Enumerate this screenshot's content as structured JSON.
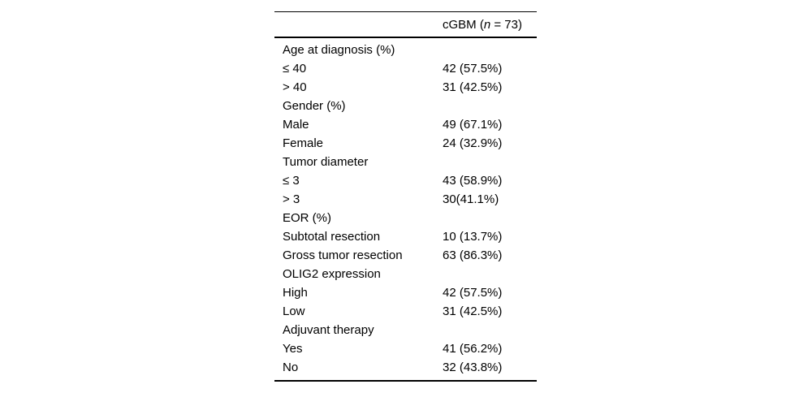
{
  "table": {
    "header": {
      "pre": "cGBM (",
      "n_italic": "n",
      "post": " = 73)"
    },
    "rows": [
      {
        "label": "Age at diagnosis (%)",
        "value": ""
      },
      {
        "label": "≤ 40",
        "value": "42 (57.5%)"
      },
      {
        "label": "> 40",
        "value": "31 (42.5%)"
      },
      {
        "label": "Gender (%)",
        "value": ""
      },
      {
        "label": "Male",
        "value": "49 (67.1%)"
      },
      {
        "label": "Female",
        "value": "24 (32.9%)"
      },
      {
        "label": "Tumor diameter",
        "value": ""
      },
      {
        "label": "≤ 3",
        "value": "43 (58.9%)"
      },
      {
        "label": "> 3",
        "value": "30(41.1%)"
      },
      {
        "label": "EOR (%)",
        "value": ""
      },
      {
        "label": "Subtotal resection",
        "value": "10 (13.7%)"
      },
      {
        "label": "Gross tumor resection",
        "value": "63 (86.3%)"
      },
      {
        "label": "OLIG2 expression",
        "value": ""
      },
      {
        "label": "High",
        "value": "42 (57.5%)"
      },
      {
        "label": "Low",
        "value": "31 (42.5%)"
      },
      {
        "label": "Adjuvant therapy",
        "value": ""
      },
      {
        "label": "Yes",
        "value": "41 (56.2%)"
      },
      {
        "label": "No",
        "value": "32 (43.8%)"
      }
    ]
  }
}
